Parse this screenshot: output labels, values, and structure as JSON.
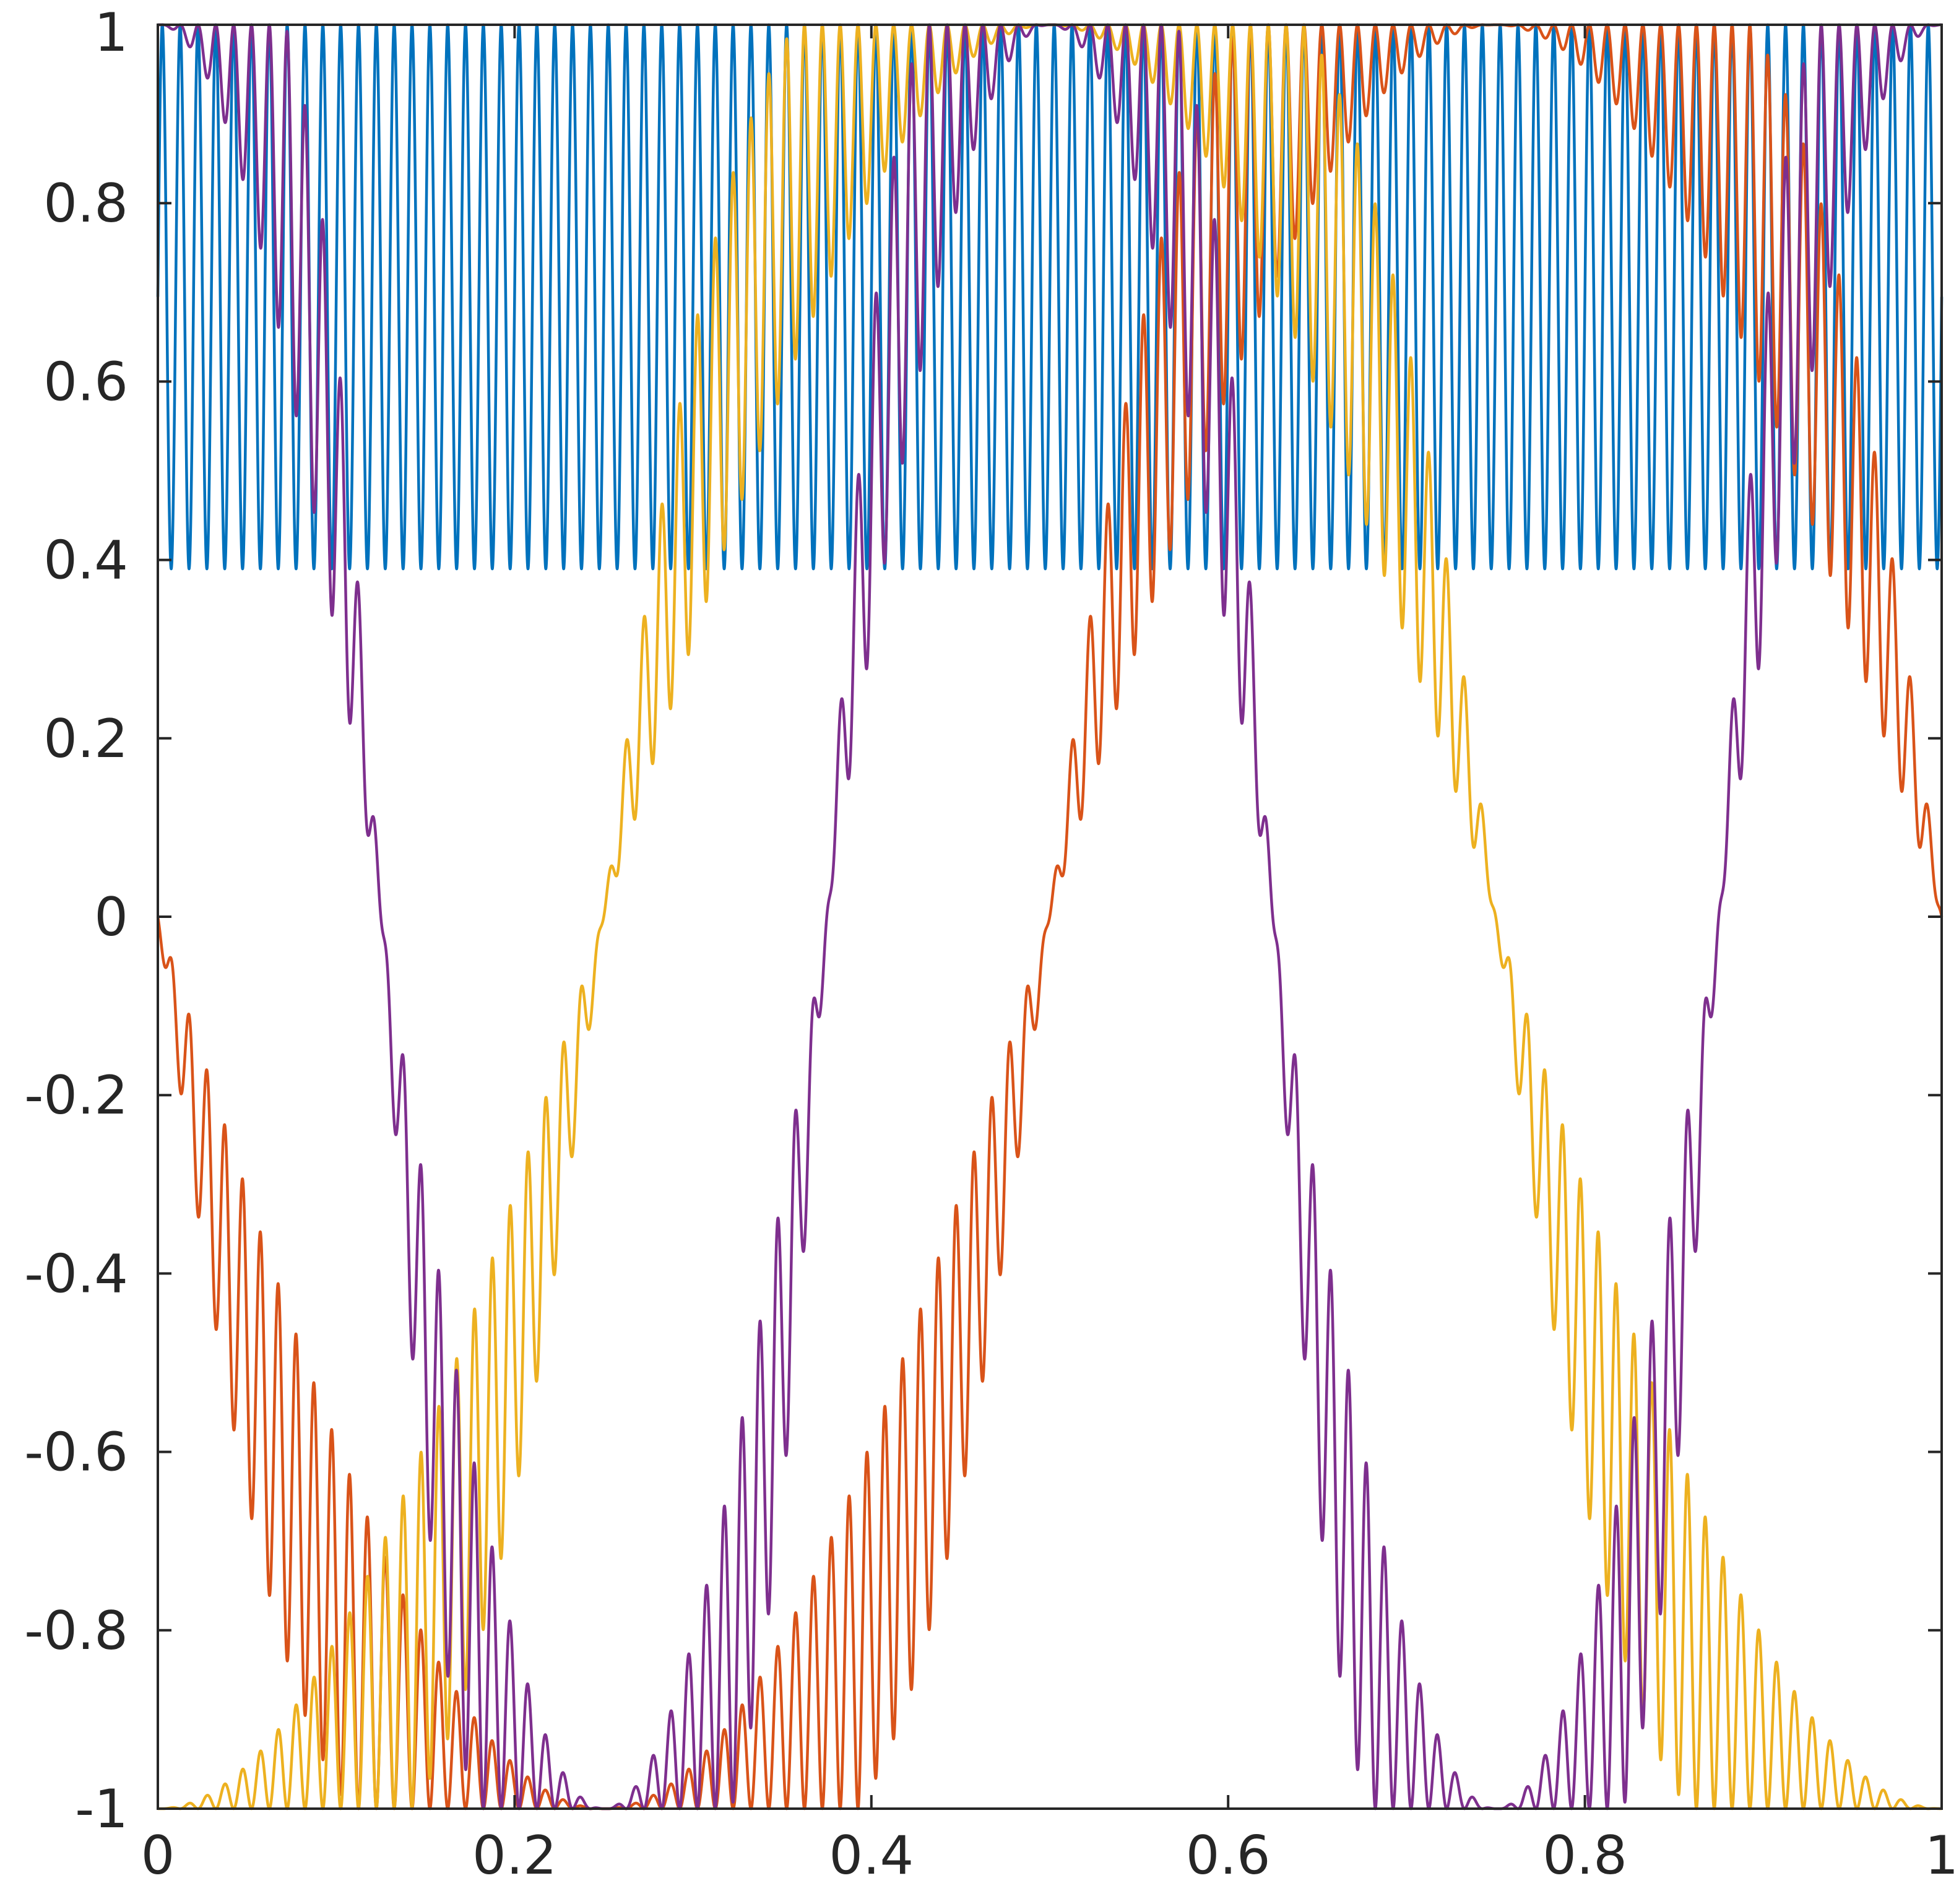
{
  "chart_data": {
    "type": "line",
    "title": "",
    "xlabel": "",
    "ylabel": "",
    "xlim": [
      0,
      1
    ],
    "ylim": [
      -1,
      1
    ],
    "grid": false,
    "legend": "none",
    "x_ticks": [
      0,
      0.2,
      0.4,
      0.6,
      0.8,
      1
    ],
    "x_tick_labels": [
      "0",
      "0.2",
      "0.4",
      "0.6",
      "0.8",
      "1"
    ],
    "y_ticks": [
      1,
      0.8,
      0.6,
      0.4,
      0.2,
      0,
      -0.2,
      -0.4,
      -0.6,
      -0.8,
      -1
    ],
    "y_tick_labels": [
      "1",
      "0.8",
      "0.6",
      "0.4",
      "0.2",
      "0",
      "-0.2",
      "-0.4",
      "-0.6",
      "-0.8",
      "-1"
    ],
    "x_range": [
      0,
      1
    ],
    "carrier_cycles": 100,
    "series": [
      {
        "color": "#0072BD",
        "base_cycles": 0,
        "base_phase": 0.25,
        "amplitude_scale": 1.0
      },
      {
        "color": "#D95319",
        "base_cycles": 1,
        "base_phase": 0.5,
        "amplitude_scale": 1.0
      },
      {
        "color": "#EDB120",
        "base_cycles": 1,
        "base_phase": 0.75,
        "amplitude_scale": 1.0
      },
      {
        "color": "#7E2F8E",
        "base_cycles": 2,
        "base_phase": 0.25,
        "amplitude_scale": 1.0
      }
    ]
  }
}
